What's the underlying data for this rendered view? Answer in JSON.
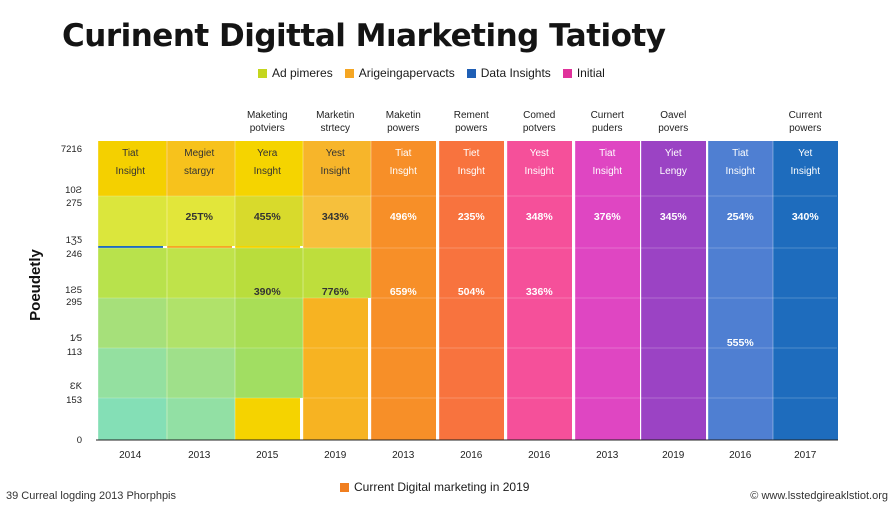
{
  "title": "Curinent Digittal Mıarketing Tatioty",
  "legend": [
    {
      "label": "Ad pimeres",
      "color": "#c4d61e"
    },
    {
      "label": "Arigeingapervacts",
      "color": "#f5a623"
    },
    {
      "label": "Data Insights",
      "color": "#1f5fb5"
    },
    {
      "label": "Initial",
      "color": "#e0329b"
    }
  ],
  "footer": {
    "label": "Current Digital marketing in 2019",
    "color": "#f07e1f"
  },
  "source_left": "39 Curreal logding 2013 Phorphpis",
  "source_right": "© www.lsstedgireaklstiot.org",
  "chart_data": {
    "type": "table",
    "ylabel": "Poeudetly",
    "y_tick_labels": [
      "0",
      "153",
      "ƐƘ",
      "113",
      "1⁄5",
      "295",
      "1Ƨ5",
      "246",
      "1ƷƼ",
      "275",
      "10Ƨ",
      "7216"
    ],
    "columns": [
      {
        "header": "",
        "x_label": "2014",
        "color": "#1e6cbd",
        "cells": {
          "top": [
            "Tiat",
            "Insight"
          ],
          "values": []
        }
      },
      {
        "header": "",
        "x_label": "2013",
        "color": "#f5a623",
        "cells": {
          "top": [
            "Megiet",
            "stargyr"
          ],
          "values": [
            "25T%"
          ]
        }
      },
      {
        "header": "Maketing\npotviers",
        "x_label": "2015",
        "color": "#f5d300",
        "cells": {
          "top": [
            "Yera",
            "Insght"
          ],
          "values": [
            "455%",
            "390%"
          ]
        }
      },
      {
        "header": "Marketin\nstrtecy",
        "x_label": "2019",
        "color": "#f7b322",
        "cells": {
          "top": [
            "Yest",
            "Insight"
          ],
          "values": [
            "343%",
            "776%"
          ]
        }
      },
      {
        "header": "Maketin\npowers",
        "x_label": "2013",
        "color": "#f78f28",
        "cells": {
          "top": [
            "Tiat",
            "Insght"
          ],
          "values": [
            "496%",
            "659%"
          ]
        }
      },
      {
        "header": "Rement\npowers",
        "x_label": "2016",
        "color": "#f8733e",
        "cells": {
          "top": [
            "Tiet",
            "Insght"
          ],
          "values": [
            "235%",
            "504%"
          ]
        }
      },
      {
        "header": "Comed\npotvers",
        "x_label": "2016",
        "color": "#f5509a",
        "cells": {
          "top": [
            "Yest",
            "Insight"
          ],
          "values": [
            "348%",
            "336%"
          ]
        }
      },
      {
        "header": "Curnert\npuders",
        "x_label": "2013",
        "color": "#df46c2",
        "cells": {
          "top": [
            "Tiat",
            "Insight"
          ],
          "values": [
            "376%"
          ]
        }
      },
      {
        "header": "Oavel\npovers",
        "x_label": "2019",
        "color": "#9b43c4",
        "cells": {
          "top": [
            "Yiet",
            "Lengy"
          ],
          "values": [
            "345%"
          ]
        }
      },
      {
        "header": "",
        "x_label": "2016",
        "color": "#4f7fd2",
        "cells": {
          "top": [
            "Tiat",
            "Insight"
          ],
          "values": [
            "254%",
            "555%"
          ]
        }
      },
      {
        "header": "Current\npowers",
        "x_label": "2017",
        "color": "#1e6cbd",
        "cells": {
          "top": [
            "Yet",
            "Insight"
          ],
          "values": [
            "340%"
          ]
        }
      }
    ]
  }
}
